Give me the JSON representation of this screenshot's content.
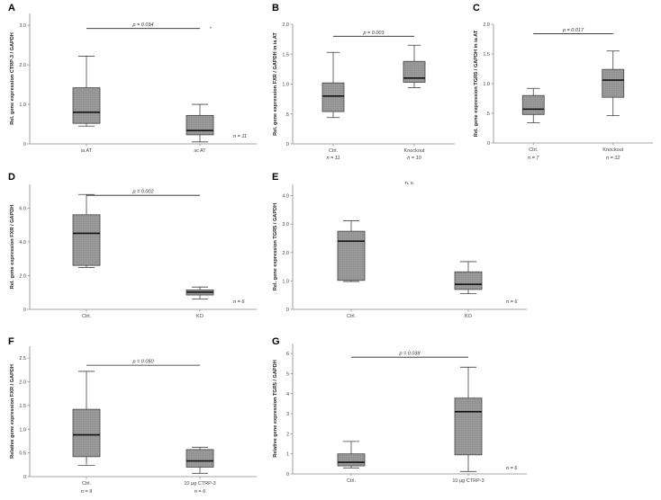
{
  "chart_data": [
    {
      "letter": "A",
      "type": "box",
      "ylabel": "Rel. gene expression CTRP-3 / GAPDH",
      "ylim": [
        0,
        3.3
      ],
      "yticks": [
        0,
        1,
        2,
        3
      ],
      "ytick_labels": [
        "0",
        "1.0",
        "2.0",
        "3.0"
      ],
      "categories": [
        "ia AT",
        "sc AT"
      ],
      "boxes": [
        {
          "whisker_low": 0.45,
          "q1": 0.52,
          "median": 0.8,
          "q3": 1.42,
          "whisker_high": 2.22,
          "outliers": []
        },
        {
          "whisker_low": 0.05,
          "q1": 0.23,
          "median": 0.34,
          "q3": 0.72,
          "whisker_high": 1.0,
          "outliers": [
            2.92
          ]
        }
      ],
      "pvalue": "p = 0.034",
      "bracket_y": 2.92,
      "n_right": "n = 11",
      "n_below": []
    },
    {
      "letter": "B",
      "type": "box",
      "ylabel": "Rel. gene expression FXR / GAPDH in ia AT",
      "ylim": [
        0,
        2.0
      ],
      "yticks": [
        0,
        0.5,
        1,
        1.5,
        2
      ],
      "ytick_labels": [
        "0",
        ".5",
        "1.0",
        "1.5",
        "2.0"
      ],
      "categories": [
        "Ctrl.",
        "Knockout"
      ],
      "boxes": [
        {
          "whisker_low": 0.44,
          "q1": 0.54,
          "median": 0.8,
          "q3": 1.02,
          "whisker_high": 1.53,
          "outliers": []
        },
        {
          "whisker_low": 0.94,
          "q1": 1.03,
          "median": 1.1,
          "q3": 1.38,
          "whisker_high": 1.65,
          "outliers": []
        }
      ],
      "pvalue": "p = 0.003",
      "bracket_y": 1.8,
      "n_right": "",
      "n_below": [
        "n = 11",
        "n = 10"
      ]
    },
    {
      "letter": "C",
      "type": "box",
      "ylabel": "Rel. gene expression TGR5 / GAPDH in ia AT",
      "ylim": [
        0,
        2.0
      ],
      "yticks": [
        0,
        0.5,
        1,
        1.5,
        2
      ],
      "ytick_labels": [
        "0",
        ".5",
        "1.0",
        "1.5",
        "2.0"
      ],
      "categories": [
        "Ctrl.",
        "Knockout"
      ],
      "boxes": [
        {
          "whisker_low": 0.34,
          "q1": 0.48,
          "median": 0.57,
          "q3": 0.8,
          "whisker_high": 0.92,
          "outliers": []
        },
        {
          "whisker_low": 0.46,
          "q1": 0.77,
          "median": 1.06,
          "q3": 1.24,
          "whisker_high": 1.55,
          "outliers": []
        }
      ],
      "pvalue": "p = 0.017",
      "bracket_y": 1.84,
      "n_right": "",
      "n_below": [
        "n = 7",
        "n = 12"
      ]
    },
    {
      "letter": "D",
      "type": "box",
      "ylabel": "Rel. gene expression FXR / GAPDH",
      "ylim": [
        0,
        7.4
      ],
      "yticks": [
        0,
        2,
        4,
        6
      ],
      "ytick_labels": [
        "0",
        "2.0",
        "4.0",
        "6.0"
      ],
      "categories": [
        "Ctrl.",
        "KO"
      ],
      "boxes": [
        {
          "whisker_low": 2.48,
          "q1": 2.6,
          "median": 4.5,
          "q3": 5.6,
          "whisker_high": 6.8,
          "outliers": []
        },
        {
          "whisker_low": 0.62,
          "q1": 0.85,
          "median": 1.02,
          "q3": 1.15,
          "whisker_high": 1.32,
          "outliers": []
        }
      ],
      "pvalue": "p = 0.002",
      "bracket_y": 6.75,
      "n_right": "n = 6",
      "n_below": []
    },
    {
      "letter": "E",
      "type": "box",
      "ylabel": "Rel. gene expression TGR5 / GAPDH",
      "ylim": [
        0,
        4.4
      ],
      "yticks": [
        0,
        1,
        2,
        3,
        4
      ],
      "ytick_labels": [
        "0",
        "1.0",
        "2.0",
        "3.0",
        "4.0"
      ],
      "categories": [
        "Ctrl.",
        "KO"
      ],
      "boxes": [
        {
          "whisker_low": 0.98,
          "q1": 1.02,
          "median": 2.4,
          "q3": 2.75,
          "whisker_high": 3.12,
          "outliers": []
        },
        {
          "whisker_low": 0.55,
          "q1": 0.7,
          "median": 0.88,
          "q3": 1.32,
          "whisker_high": 1.68,
          "outliers": []
        }
      ],
      "pvalue": "n. s.",
      "bracket_y": null,
      "n_right": "n = 6",
      "n_below": []
    },
    {
      "letter": "F",
      "type": "box",
      "ylabel": "Relative gene expression FXR / GAPDH",
      "ylim": [
        0,
        2.75
      ],
      "yticks": [
        0,
        0.5,
        1,
        1.5,
        2,
        2.5
      ],
      "ytick_labels": [
        "0",
        "0.5",
        "1.0",
        "1.5",
        "2.0",
        "2.5"
      ],
      "categories": [
        "Ctrl.",
        "10 µg CTRP-3"
      ],
      "boxes": [
        {
          "whisker_low": 0.24,
          "q1": 0.42,
          "median": 0.88,
          "q3": 1.42,
          "whisker_high": 2.22,
          "outliers": []
        },
        {
          "whisker_low": 0.07,
          "q1": 0.2,
          "median": 0.33,
          "q3": 0.57,
          "whisker_high": 0.62,
          "outliers": []
        }
      ],
      "pvalue": "p = 0.050",
      "bracket_y": 2.35,
      "n_right": "",
      "n_below": [
        "n = 9",
        "n = 6"
      ]
    },
    {
      "letter": "G",
      "type": "box",
      "ylabel": "Relative gene expression TGR5 / GAPDH",
      "ylim": [
        0,
        6.5
      ],
      "yticks": [
        0,
        1,
        2,
        3,
        4,
        5,
        6
      ],
      "ytick_labels": [
        "0",
        "1",
        "2",
        "3",
        "4",
        "5",
        "6"
      ],
      "categories": [
        "Ctrl.",
        "10 µg CTRP-3"
      ],
      "boxes": [
        {
          "whisker_low": 0.3,
          "q1": 0.4,
          "median": 0.58,
          "q3": 1.0,
          "whisker_high": 1.62,
          "outliers": []
        },
        {
          "whisker_low": 0.12,
          "q1": 0.95,
          "median": 3.1,
          "q3": 3.78,
          "whisker_high": 5.32,
          "outliers": []
        }
      ],
      "pvalue": "p = 0.038",
      "bracket_y": 5.82,
      "n_right": "n = 6",
      "n_below": []
    }
  ]
}
